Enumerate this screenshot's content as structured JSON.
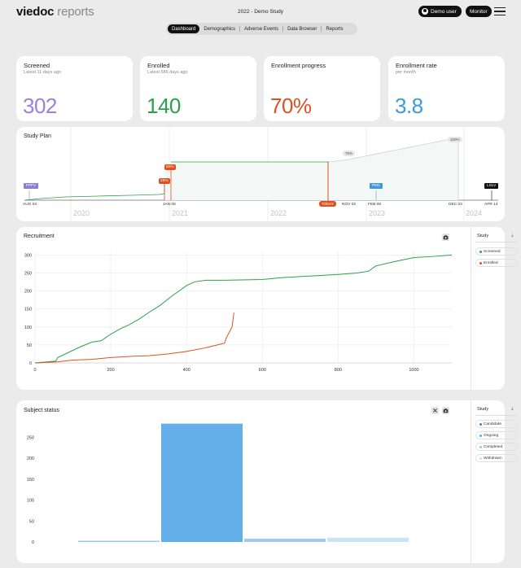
{
  "app": {
    "logo_brand": "viedoc",
    "logo_product": "reports",
    "study_title": "2022 - Demo Study",
    "user_label": "Demo user",
    "role_label": "Monitor"
  },
  "tabs": [
    {
      "label": "Dashboard",
      "active": true
    },
    {
      "label": "Demographics"
    },
    {
      "label": "Adverse Events"
    },
    {
      "label": "Data Browser"
    },
    {
      "label": "Reports"
    }
  ],
  "kpis": {
    "screened": {
      "title": "Screened",
      "subtitle": "Latest 11 days ago",
      "value": "302",
      "color": "#9b7fe6"
    },
    "enrolled": {
      "title": "Enrolled",
      "subtitle": "Latest 586 days ago",
      "value": "140",
      "color": "#2aa24a"
    },
    "progress": {
      "title": "Enrollment progress",
      "subtitle": "",
      "value": "70%",
      "color": "#e0501f"
    },
    "rate": {
      "title": "Enrollment rate",
      "subtitle": "per month",
      "value": "3.8",
      "color": "#3e9ad8"
    }
  },
  "study_plan": {
    "title": "Study Plan",
    "markers": {
      "fpfv": "FPFV",
      "pm1": "PM1",
      "lslv": "LSLV",
      "today": "TODAY",
      "p25": "25%",
      "p50": "50%",
      "p75": "75%",
      "p100": "100%"
    },
    "dates": {
      "aug04": "AUG 04",
      "jan06": "JAN 06",
      "nov02": "NOV 02",
      "feb08": "FEB 08",
      "dec03": "DEC 03",
      "apr14": "APR 14"
    },
    "years": [
      "2020",
      "2021",
      "2022",
      "2023",
      "2024"
    ]
  },
  "recruitment": {
    "title": "Recruitment",
    "legend_title": "Study",
    "legend_arrow": "⇣",
    "legend": [
      {
        "label": "Screened",
        "color": "#2aa24a"
      },
      {
        "label": "Enrolled",
        "color": "#e0501f"
      }
    ],
    "chart_data": {
      "type": "line",
      "xlim": [
        0,
        1100
      ],
      "ylim": [
        0,
        310
      ],
      "xticks": [
        0,
        200,
        400,
        600,
        800,
        1000
      ],
      "yticks": [
        0,
        50,
        100,
        150,
        200,
        250,
        300
      ],
      "series": [
        {
          "name": "Screened",
          "color": "#2aa24a",
          "x": [
            0,
            55,
            60,
            90,
            120,
            150,
            175,
            200,
            225,
            250,
            275,
            300,
            330,
            360,
            380,
            400,
            420,
            450,
            500,
            600,
            650,
            700,
            750,
            800,
            850,
            880,
            900,
            950,
            1000,
            1050,
            1100
          ],
          "y": [
            0,
            5,
            15,
            30,
            45,
            58,
            62,
            80,
            95,
            107,
            122,
            140,
            160,
            185,
            200,
            215,
            225,
            230,
            230,
            232,
            237,
            240,
            243,
            246,
            250,
            255,
            270,
            282,
            293,
            296,
            300
          ]
        },
        {
          "name": "Enrolled",
          "color": "#e0501f",
          "x": [
            0,
            60,
            100,
            150,
            200,
            250,
            300,
            350,
            400,
            450,
            500,
            505,
            520,
            525
          ],
          "y": [
            0,
            3,
            8,
            10,
            15,
            18,
            20,
            25,
            32,
            42,
            55,
            70,
            100,
            140
          ]
        }
      ]
    }
  },
  "subject_status": {
    "title": "Subject status",
    "legend_title": "Study",
    "legend_arrow": "⇣",
    "legend": [
      {
        "label": "Candidate",
        "color": "#3e7fd1"
      },
      {
        "label": "Ongoing",
        "color": "#5aaeea"
      },
      {
        "label": "Completed",
        "color": "#8ec7ee"
      },
      {
        "label": "Withdrawn",
        "color": "#c3e1f5"
      }
    ],
    "chart_data": {
      "type": "bar",
      "categories": [
        "Candidate",
        "Ongoing",
        "Completed",
        "Withdrawn"
      ],
      "values": [
        1,
        283,
        8,
        10
      ],
      "ylim": [
        0,
        290
      ],
      "yticks": [
        0,
        50,
        100,
        150,
        200,
        250
      ],
      "colors": [
        "#9fcbe8",
        "#64afe9",
        "#9fcbe8",
        "#c9e3f4"
      ]
    }
  }
}
